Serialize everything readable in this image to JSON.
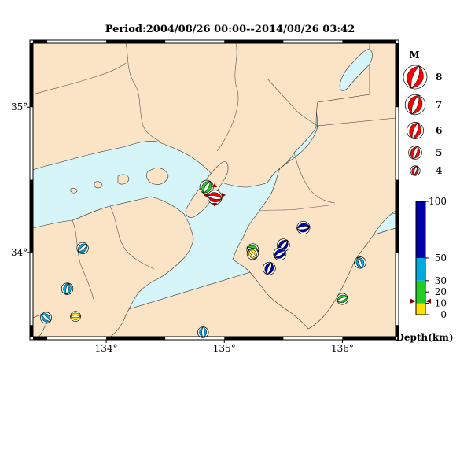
{
  "title": "Period:2004/08/26 00:00--2014/08/26 03:42",
  "colors": {
    "sea": "#d5f5f8",
    "land": "#fbe3c5",
    "event_red": "#ff0000",
    "depth_low": "#ffe000",
    "depth_green": "#22cc22",
    "depth_cyan": "#00aadd",
    "depth_deep": "#0000aa"
  },
  "axes": {
    "x_ticks": [
      {
        "value": 134,
        "label": "134°"
      },
      {
        "value": 135,
        "label": "135°"
      },
      {
        "value": 136,
        "label": "136°"
      }
    ],
    "y_ticks": [
      {
        "value": 35,
        "label": "35°"
      },
      {
        "value": 34,
        "label": "34°"
      }
    ],
    "lon_range": [
      133.38,
      136.45
    ],
    "lat_range": [
      33.42,
      35.44
    ]
  },
  "magnitude_legend": {
    "title": "M",
    "items": [
      {
        "label": "8",
        "m": 8
      },
      {
        "label": "7",
        "m": 7
      },
      {
        "label": "6",
        "m": 6
      },
      {
        "label": "5",
        "m": 5
      },
      {
        "label": "4",
        "m": 4
      }
    ]
  },
  "depth_legend": {
    "title": "Depth(km)",
    "range": [
      0,
      100
    ],
    "ticks": [
      {
        "value": 100,
        "label": "100"
      },
      {
        "value": 50,
        "label": "50"
      },
      {
        "value": 30,
        "label": "30"
      },
      {
        "value": 20,
        "label": "20"
      },
      {
        "value": 10,
        "label": "10"
      },
      {
        "value": 0,
        "label": "0"
      }
    ],
    "segments": [
      {
        "from": 0,
        "to": 10,
        "color": "#ffe000"
      },
      {
        "from": 10,
        "to": 30,
        "color": "#22cc22"
      },
      {
        "from": 30,
        "to": 50,
        "color": "#00aadd"
      },
      {
        "from": 50,
        "to": 100,
        "color": "#0000aa"
      }
    ],
    "marker_depth": 12
  },
  "events": [
    {
      "lon": 134.85,
      "lat": 34.45,
      "m": 5.1,
      "color": "#22cc22",
      "rot": 30
    },
    {
      "lon": 134.92,
      "lat": 34.38,
      "m": 5.3,
      "color": "#ff0000",
      "rot": 100
    },
    {
      "lon": 135.67,
      "lat": 34.17,
      "m": 4.9,
      "color": "#0000aa",
      "rot": 80
    },
    {
      "lon": 135.5,
      "lat": 34.05,
      "m": 4.8,
      "color": "#0000aa",
      "rot": 40
    },
    {
      "lon": 135.47,
      "lat": 33.99,
      "m": 4.8,
      "color": "#0000aa",
      "rot": 60
    },
    {
      "lon": 135.38,
      "lat": 33.89,
      "m": 4.8,
      "color": "#0000aa",
      "rot": 20
    },
    {
      "lon": 135.24,
      "lat": 34.02,
      "m": 4.6,
      "color": "#22cc22",
      "rot": 110
    },
    {
      "lon": 135.24,
      "lat": 33.99,
      "m": 4.4,
      "color": "#ffe000",
      "rot": 140
    },
    {
      "lon": 133.8,
      "lat": 34.03,
      "m": 4.5,
      "color": "#00aadd",
      "rot": 50
    },
    {
      "lon": 133.67,
      "lat": 33.75,
      "m": 4.5,
      "color": "#00aadd",
      "rot": 10
    },
    {
      "lon": 133.49,
      "lat": 33.55,
      "m": 4.4,
      "color": "#00aadd",
      "rot": 130
    },
    {
      "lon": 133.74,
      "lat": 33.56,
      "m": 4.1,
      "color": "#ffe000",
      "rot": 90
    },
    {
      "lon": 136.15,
      "lat": 33.93,
      "m": 4.5,
      "color": "#00aadd",
      "rot": 160
    },
    {
      "lon": 136.0,
      "lat": 33.68,
      "m": 4.4,
      "color": "#22cc22",
      "rot": 70
    },
    {
      "lon": 134.82,
      "lat": 33.45,
      "m": 4.3,
      "color": "#00aadd",
      "rot": 0
    }
  ]
}
